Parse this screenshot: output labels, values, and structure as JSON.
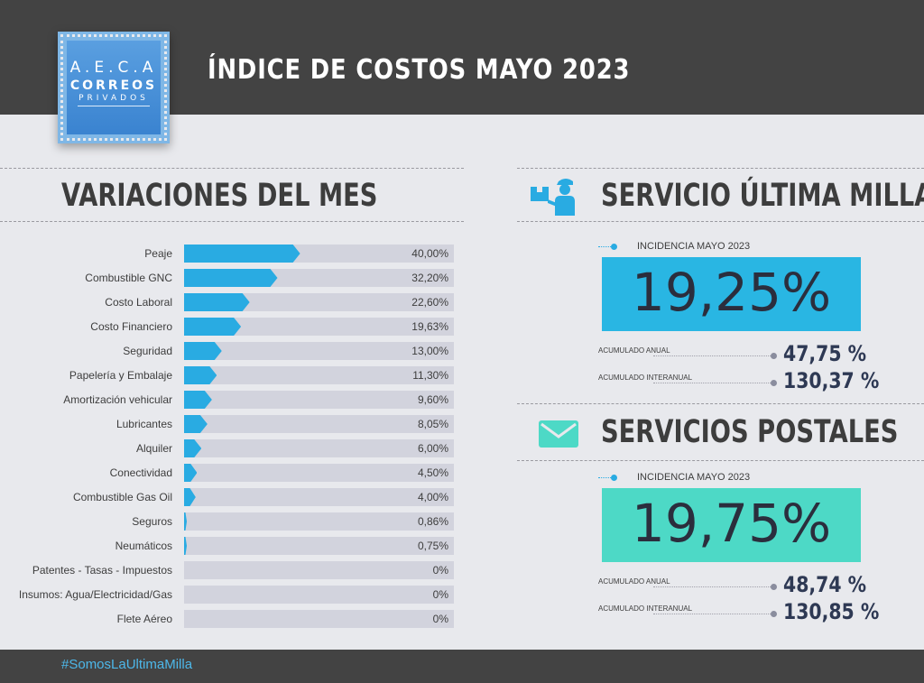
{
  "header": {
    "title": "ÍNDICE DE COSTOS MAYO 2023"
  },
  "logo": {
    "line1": "A.E.C.A",
    "line2": "CORREOS",
    "line3": "PRIVADOS"
  },
  "left": {
    "title": "VARIACIONES DEL MES"
  },
  "colors": {
    "bar": "#29abe2",
    "track": "#d2d3dd",
    "header": "#434343",
    "postal": "#4dd9c6"
  },
  "chart_data": {
    "type": "bar",
    "orientation": "horizontal",
    "title": "VARIACIONES DEL MES",
    "categories": [
      "Peaje",
      "Combustible GNC",
      "Costo Laboral",
      "Costo Financiero",
      "Seguridad",
      "Papelería y Embalaje",
      "Amortización vehicular",
      "Lubricantes",
      "Alquiler",
      "Conectividad",
      "Combustible Gas Oil",
      "Seguros",
      "Neumáticos",
      "Patentes - Tasas - Impuestos",
      "Insumos: Agua/Electricidad/Gas",
      "Flete Aéreo"
    ],
    "values": [
      40.0,
      32.2,
      22.6,
      19.63,
      13.0,
      11.3,
      9.6,
      8.05,
      6.0,
      4.5,
      4.0,
      0.86,
      0.75,
      0,
      0,
      0
    ],
    "value_labels": [
      "40,00%",
      "32,20%",
      "22,60%",
      "19,63%",
      "13,00%",
      "11,30%",
      "9,60%",
      "8,05%",
      "6,00%",
      "4,50%",
      "4,00%",
      "0,86%",
      "0,75%",
      "0%",
      "0%",
      "0%"
    ],
    "xlim": [
      0,
      93
    ]
  },
  "servicio_ultima_milla": {
    "title": "SERVICIO ÚLTIMA MILLA",
    "incidencia_label": "INCIDENCIA MAYO 2023",
    "incidencia_value": "19,25%",
    "acumulado_anual_label": "ACUMULADO ANUAL",
    "acumulado_anual_value": "47,75 %",
    "acumulado_interanual_label": "ACUMULADO INTERANUAL",
    "acumulado_interanual_value": "130,37 %",
    "icon": "delivery-person-icon"
  },
  "servicios_postales": {
    "title": "SERVICIOS POSTALES",
    "incidencia_label": "INCIDENCIA MAYO 2023",
    "incidencia_value": "19,75%",
    "acumulado_anual_label": "ACUMULADO ANUAL",
    "acumulado_anual_value": "48,74 %",
    "acumulado_interanual_label": "ACUMULADO INTERANUAL",
    "acumulado_interanual_value": "130,85 %",
    "icon": "envelope-icon"
  },
  "footer": {
    "hashtag": "#SomosLaUltimaMilla"
  }
}
